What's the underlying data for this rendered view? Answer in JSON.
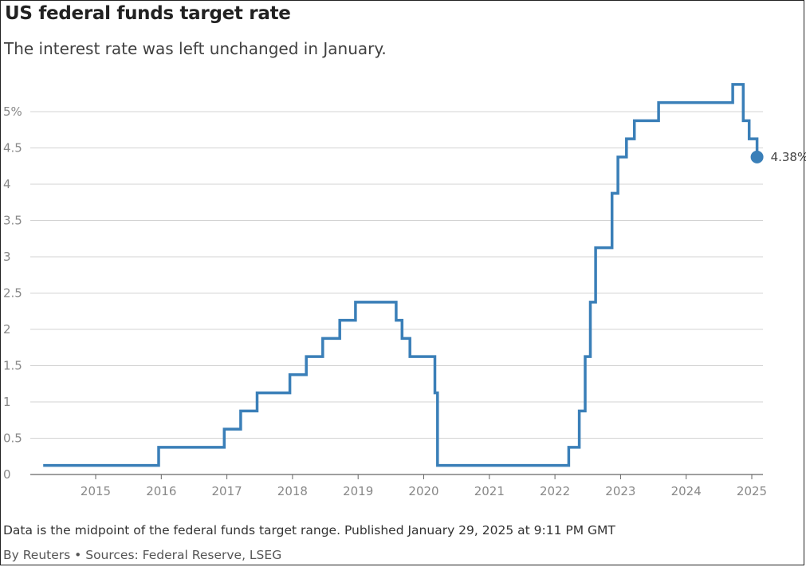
{
  "header": {
    "title": "US federal funds target rate",
    "subtitle": "The interest rate was left unchanged in January."
  },
  "footer": {
    "note": "Data is the midpoint of the federal funds target range. Published January 29, 2025 at 9:11 PM GMT",
    "credit": "By Reuters • Sources: Federal Reserve, LSEG"
  },
  "colors": {
    "line": "#3a7fb8",
    "grid": "#d3d3d3",
    "axis": "#666666"
  },
  "chart_data": {
    "type": "line",
    "step": true,
    "title": "US federal funds target rate",
    "subtitle": "The interest rate was left unchanged in January.",
    "xlabel": "",
    "ylabel": "",
    "xlim": [
      2014.15,
      2025.1
    ],
    "ylim": [
      0,
      5.5
    ],
    "x_ticks": [
      "2015",
      "2016",
      "2017",
      "2018",
      "2019",
      "2020",
      "2021",
      "2022",
      "2023",
      "2024",
      "2025"
    ],
    "y_ticks": [
      "0",
      "0.5",
      "1",
      "1.5",
      "2",
      "2.5",
      "3",
      "3.5",
      "4",
      "4.5",
      "5%"
    ],
    "grid": true,
    "end_label": "4.38%",
    "series": [
      {
        "x": [
          2014.2,
          2015.96,
          2016.96,
          2017.21,
          2017.46,
          2017.96,
          2018.21,
          2018.46,
          2018.72,
          2018.96,
          2019.58,
          2019.67,
          2019.79,
          2020.17,
          2020.21,
          2022.21,
          2022.37,
          2022.46,
          2022.54,
          2022.62,
          2022.87,
          2022.96,
          2023.09,
          2023.21,
          2023.58,
          2024.71,
          2024.87,
          2024.96,
          2025.08
        ],
        "y": [
          0.125,
          0.375,
          0.625,
          0.875,
          1.125,
          1.375,
          1.625,
          1.875,
          2.125,
          2.375,
          2.125,
          1.875,
          1.625,
          1.125,
          0.125,
          0.375,
          0.875,
          1.625,
          2.375,
          3.125,
          3.875,
          4.375,
          4.625,
          4.875,
          5.125,
          5.375,
          4.875,
          4.625,
          4.375
        ]
      }
    ]
  }
}
